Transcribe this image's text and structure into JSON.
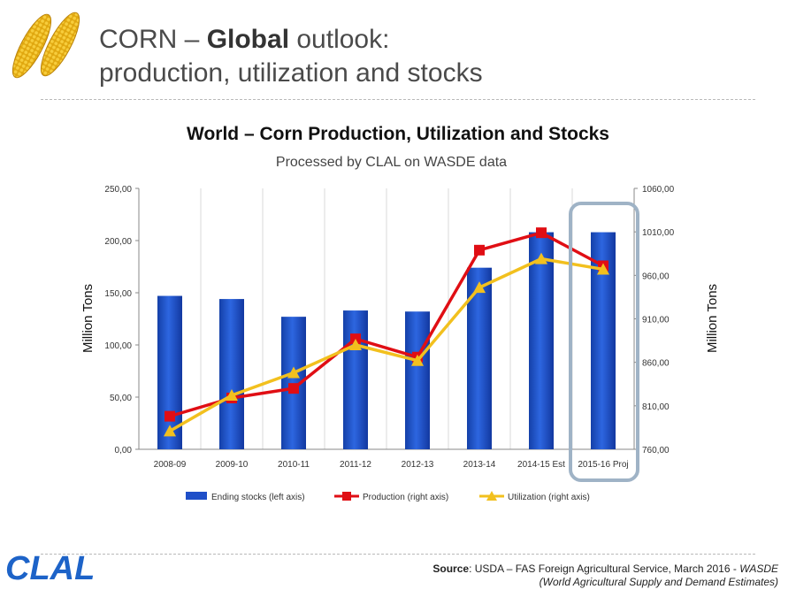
{
  "slide": {
    "title_prefix": "CORN – ",
    "title_bold": "Global",
    "title_suffix": " outlook:",
    "title_line2": "production, utilization and stocks"
  },
  "chart_data": {
    "type": "bar+line",
    "title": "World – Corn Production, Utilization and Stocks",
    "subtitle": "Processed by CLAL on WASDE data",
    "categories": [
      "2008-09",
      "2009-10",
      "2010-11",
      "2011-12",
      "2012-13",
      "2013-14",
      "2014-15 Est",
      "2015-16 Proj"
    ],
    "ylabel_left": "Million Tons",
    "ylabel_right": "Million Tons",
    "ylim_left": [
      0,
      250
    ],
    "ylim_right": [
      760,
      1060
    ],
    "yticks_left": [
      "0,00",
      "50,00",
      "100,00",
      "150,00",
      "200,00",
      "250,00"
    ],
    "yticks_right": [
      "760,00",
      "810,00",
      "860,00",
      "910,00",
      "960,00",
      "1010,00",
      "1060,00"
    ],
    "grid": "vertical gridlines between categories",
    "series": [
      {
        "name": "Ending stocks (left axis)",
        "type": "bar",
        "axis": "left",
        "color": "#1f4fc8",
        "values": [
          147,
          144,
          127,
          133,
          132,
          174,
          208,
          208
        ]
      },
      {
        "name": "Production (right axis)",
        "type": "line",
        "axis": "right",
        "color": "#e00e14",
        "marker": "square",
        "values": [
          798,
          819,
          830,
          887,
          866,
          989,
          1009,
          971
        ]
      },
      {
        "name": "Utilization (right axis)",
        "type": "line",
        "axis": "right",
        "color": "#f2c01e",
        "marker": "triangle",
        "values": [
          781,
          822,
          848,
          880,
          862,
          946,
          979,
          967
        ]
      }
    ],
    "highlight": {
      "category": "2015-16 Proj",
      "style": "rounded outline box"
    }
  },
  "source": {
    "label": "Source",
    "text": ": USDA – FAS Foreign Agricultural Service, March 2016 - ",
    "italic": "WASDE",
    "line2": "(World Agricultural Supply and Demand Estimates)"
  },
  "logo": {
    "text": "CLAL",
    "color": "#1d63c8"
  }
}
